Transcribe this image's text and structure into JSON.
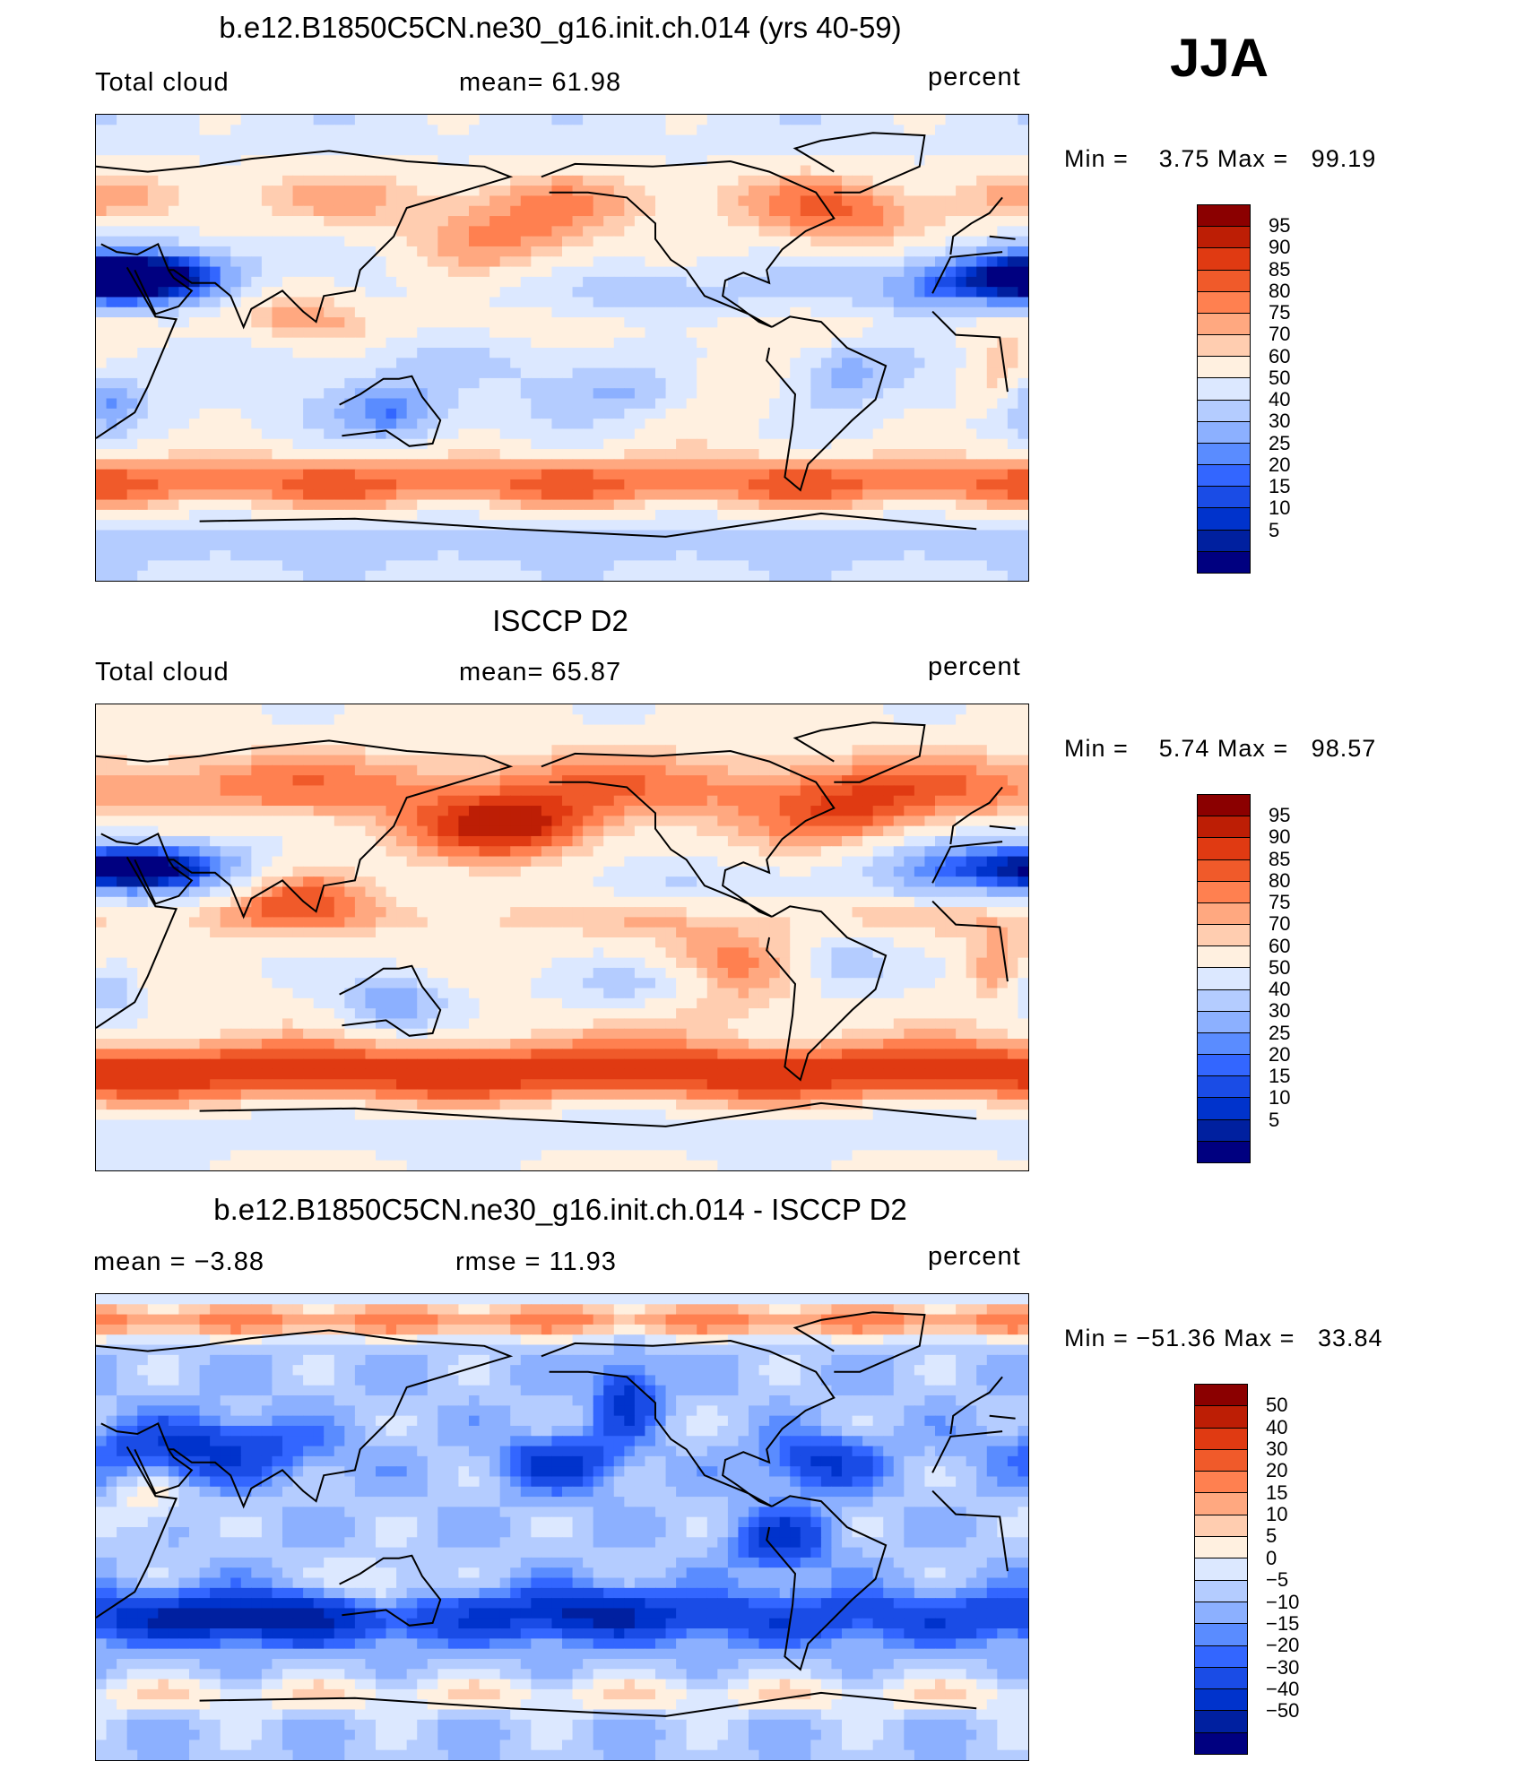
{
  "season_label": "JJA",
  "units": "percent",
  "colors": {
    "abs_scale": [
      "#000080",
      "#00209f",
      "#0033cc",
      "#1a4ce6",
      "#3366ff",
      "#5a8cff",
      "#8cb0ff",
      "#b4ccff",
      "#dce8ff",
      "#fff0e0",
      "#ffcdb0",
      "#ffa880",
      "#ff8050",
      "#f05a2a",
      "#e03a12",
      "#bd1e05",
      "#8b0000"
    ],
    "diff_scale": [
      "#000080",
      "#0020a0",
      "#0033cc",
      "#1a4ce6",
      "#3366ff",
      "#5a8cff",
      "#8cb0ff",
      "#b4ccff",
      "#dce8ff",
      "#fff0e0",
      "#ffcdb0",
      "#ffa880",
      "#ff8050",
      "#f05a2a",
      "#e03a12",
      "#bd1e05",
      "#8b0000"
    ]
  },
  "panels": [
    {
      "title": "b.e12.B1850C5CN.ne30_g16.init.ch.014 (yrs 40-59)",
      "left_label": "Total cloud",
      "center_label": "mean=   61.98",
      "right_label": "percent",
      "min_label": "Min =",
      "min_value": "3.75",
      "max_label": "Max =",
      "max_value": "99.19",
      "legend_labels": [
        "95",
        "90",
        "85",
        "80",
        "75",
        "70",
        "60",
        "50",
        "40",
        "30",
        "25",
        "20",
        "15",
        "10",
        "5"
      ],
      "field": "model"
    },
    {
      "title": "ISCCP D2",
      "left_label": "Total cloud",
      "center_label": "mean=   65.87",
      "right_label": "percent",
      "min_label": "Min =",
      "min_value": "5.74",
      "max_label": "Max =",
      "max_value": "98.57",
      "legend_labels": [
        "95",
        "90",
        "85",
        "80",
        "75",
        "70",
        "60",
        "50",
        "40",
        "30",
        "25",
        "20",
        "15",
        "10",
        "5"
      ],
      "field": "obs"
    },
    {
      "title": "b.e12.B1850C5CN.ne30_g16.init.ch.014 - ISCCP D2",
      "left_label": "mean =   −3.88",
      "center_label": "rmse =   11.93",
      "right_label": "percent",
      "min_label": "Min =",
      "min_value": "−51.36",
      "max_label": "Max =",
      "max_value": "33.84",
      "legend_labels": [
        "50",
        "40",
        "30",
        "20",
        "15",
        "10",
        "5",
        "0",
        "−5",
        "−10",
        "−15",
        "−20",
        "−30",
        "−40",
        "−50"
      ],
      "field": "diff"
    }
  ]
}
